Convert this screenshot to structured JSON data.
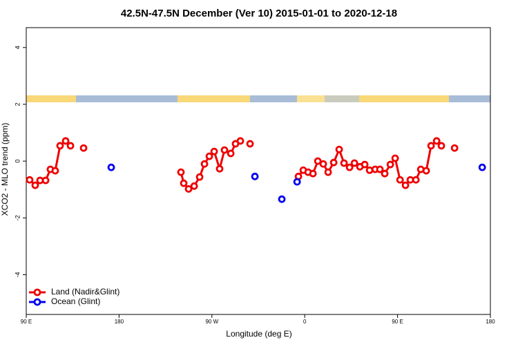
{
  "chart_data": {
    "type": "line",
    "title": "42.5N-47.5N December (Ver 10)   2015-01-01 to 2020-12-18",
    "x_label": "Longitude (deg E)",
    "y_label": "XCO2 - MLO trend (ppm)",
    "xlim": [
      90,
      540
    ],
    "ylim": [
      -5.4,
      4.7
    ],
    "xticks": [
      {
        "value": 90,
        "label": "90 E"
      },
      {
        "value": 180,
        "label": "180"
      },
      {
        "value": 270,
        "label": "90 W"
      },
      {
        "value": 360,
        "label": "0"
      },
      {
        "value": 450,
        "label": "90 E"
      },
      {
        "value": 540,
        "label": "180"
      }
    ],
    "yticks": [
      -4,
      -2,
      0,
      2,
      4
    ],
    "legend": "bottom-left",
    "series": [
      {
        "name": "Land (Nadir&Glint)",
        "color": "#ee0000",
        "x": [
          93.3,
          98.7,
          103.4,
          108.8,
          113.4,
          118.1,
          122.8,
          128.2,
          132.9,
          null,
          145.6,
          null,
          240.0,
          242.7,
          247.4,
          252.8,
          258.1,
          262.8,
          267.5,
          272.2,
          277.5,
          282.2,
          288.3,
          292.9,
          297.6,
          null,
          307.0,
          null,
          353.9,
          358.6,
          363.3,
          368.0,
          372.7,
          378.0,
          382.7,
          388.1,
          393.4,
          398.1,
          403.5,
          408.2,
          413.5,
          418.2,
          422.9,
          428.3,
          432.9,
          437.6,
          443.0,
          447.7,
          452.4,
          457.7,
          462.4,
          467.8,
          472.5,
          477.8,
          482.5,
          487.9,
          492.5,
          null,
          505.3
        ],
        "values": [
          -0.66,
          -0.85,
          -0.68,
          -0.68,
          -0.29,
          -0.34,
          0.54,
          0.71,
          0.54,
          null,
          0.46,
          null,
          -0.39,
          -0.78,
          -0.98,
          -0.88,
          -0.56,
          -0.1,
          0.17,
          0.34,
          -0.27,
          0.39,
          0.27,
          0.61,
          0.71,
          null,
          0.61,
          null,
          -0.54,
          -0.32,
          -0.39,
          -0.44,
          0.0,
          -0.1,
          -0.39,
          -0.05,
          0.41,
          -0.07,
          -0.22,
          -0.07,
          -0.2,
          -0.12,
          -0.32,
          -0.29,
          -0.29,
          -0.44,
          -0.12,
          0.1,
          -0.66,
          -0.85,
          -0.66,
          -0.66,
          -0.29,
          -0.34,
          0.54,
          0.71,
          0.54,
          null,
          0.46
        ]
      },
      {
        "name": "Ocean (Glint)",
        "color": "#0000ee",
        "x": [
          172.4,
          null,
          311.7,
          null,
          337.8,
          null,
          352.6,
          null,
          532.1
        ],
        "values": [
          -0.22,
          null,
          -0.54,
          null,
          -1.34,
          null,
          -0.73,
          null,
          -0.22
        ]
      }
    ]
  }
}
